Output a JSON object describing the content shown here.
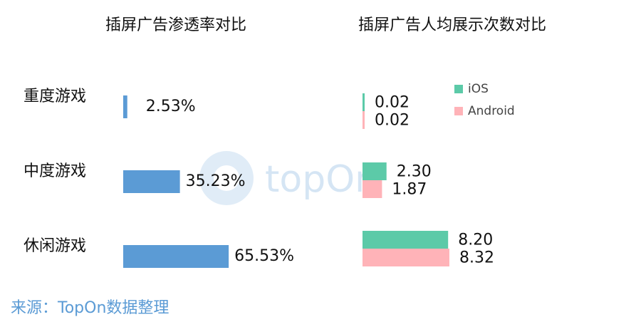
{
  "chart_data": [
    {
      "type": "hbar",
      "title": "插屏广告渗透率对比",
      "categories": [
        "重度游戏",
        "中度游戏",
        "休闲游戏"
      ],
      "values": [
        2.53,
        35.23,
        65.53
      ],
      "value_labels": [
        "2.53%",
        "35.23%",
        "65.53%"
      ],
      "color": "#5b9bd5"
    },
    {
      "type": "grouped-hbar",
      "title": "插屏广告人均展示次数对比",
      "series": [
        {
          "name": "iOS",
          "color": "#5ccaa8",
          "values": [
            0.02,
            2.3,
            8.2
          ],
          "value_labels": [
            "0.02",
            "2.30",
            "8.20"
          ]
        },
        {
          "name": "Android",
          "color": "#ffb3b8",
          "values": [
            0.02,
            1.87,
            8.32
          ],
          "value_labels": [
            "0.02",
            "1.87",
            "8.32"
          ]
        }
      ],
      "legend": "top-right"
    }
  ],
  "watermark": "topOn",
  "source": "来源：TopOn数据整理"
}
